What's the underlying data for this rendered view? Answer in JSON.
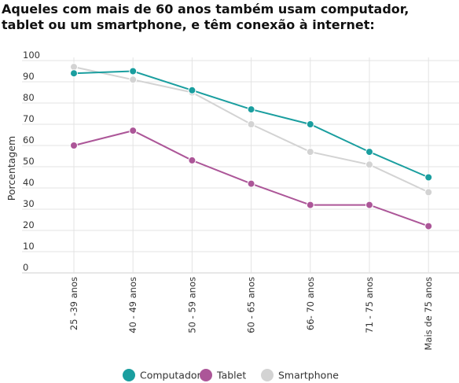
{
  "title": "Aqueles com mais de 60 anos também usam computador, tablet ou um smartphone, e têm conexão à internet:",
  "chart_data": {
    "type": "line",
    "ylabel": "Porcentagem",
    "xlabel": "",
    "ylim": [
      0,
      100
    ],
    "yticks": [
      0,
      10,
      20,
      30,
      40,
      50,
      60,
      70,
      80,
      90,
      100
    ],
    "grid": true,
    "legend_position": "bottom-center",
    "categories": [
      "25 -39 anos",
      "40 - 49 anos",
      "50 - 59 anos",
      "60 - 65 anos",
      "66- 70 anos",
      "71 - 75 anos",
      "Mais de 75 anos"
    ],
    "series": [
      {
        "name": "Computador",
        "color": "#1a9e9f",
        "values": [
          94,
          95,
          86,
          77,
          70,
          57,
          45
        ]
      },
      {
        "name": "Tablet",
        "color": "#ac5698",
        "values": [
          60,
          67,
          53,
          42,
          32,
          32,
          22
        ]
      },
      {
        "name": "Smartphone",
        "color": "#d3d3d3",
        "values": [
          97,
          91,
          85,
          70,
          57,
          51,
          38
        ]
      }
    ]
  }
}
